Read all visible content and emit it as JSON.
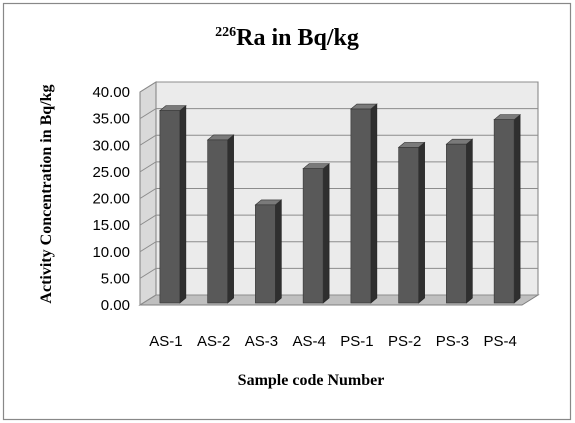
{
  "chart_data": {
    "type": "bar",
    "title_sup": "226",
    "title_main": "Ra in Bq/kg",
    "xlabel": "Sample code Number",
    "ylabel": "Activity Concentration in Bq/kg",
    "categories": [
      "AS-1",
      "AS-2",
      "AS-3",
      "AS-4",
      "PS-1",
      "PS-2",
      "PS-3",
      "PS-4"
    ],
    "values": [
      36.5,
      31.0,
      18.8,
      25.6,
      36.8,
      29.6,
      30.2,
      34.8
    ],
    "ylim": [
      0,
      40
    ],
    "yticks": [
      "0.00",
      "5.00",
      "10.00",
      "15.00",
      "20.00",
      "25.00",
      "30.00",
      "35.00",
      "40.00"
    ],
    "grid": true,
    "bar_style": "3d",
    "colors": {
      "bar_front": "#595959",
      "bar_side": "#2f2f2f",
      "bar_top": "#7a7a7a",
      "back_wall": "#ebebeb",
      "floor": "#bfbfbf",
      "gridline": "#8c8c8c",
      "frame": "#7f7f7f"
    }
  }
}
